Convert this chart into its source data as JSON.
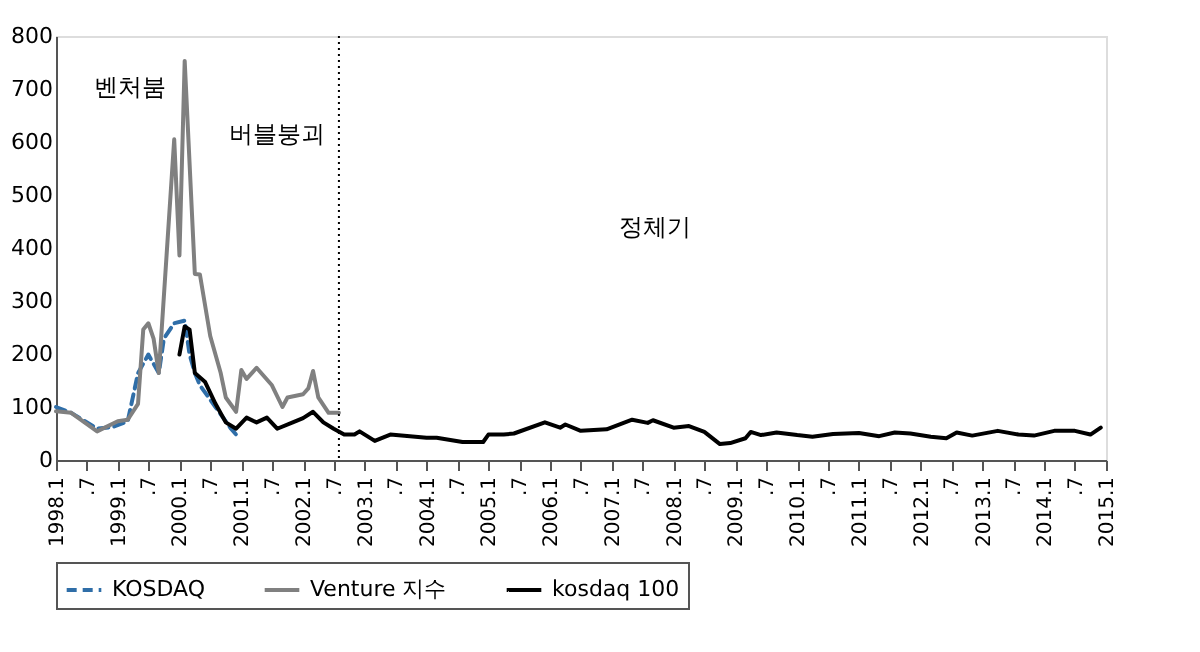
{
  "chart_data": {
    "type": "line",
    "xlim": [
      "1998-01",
      "2015-01"
    ],
    "ylim": [
      0,
      800
    ],
    "yticks": [
      0,
      100,
      200,
      300,
      400,
      500,
      600,
      700,
      800
    ],
    "xticks": [
      {
        "value": "1998-01",
        "label": "1998.1"
      },
      {
        "value": "1998-07",
        "label": ".7"
      },
      {
        "value": "1999-01",
        "label": "1999.1"
      },
      {
        "value": "1999-07",
        "label": ".7"
      },
      {
        "value": "2000-01",
        "label": "2000.1"
      },
      {
        "value": "2000-07",
        "label": ".7"
      },
      {
        "value": "2001-01",
        "label": "2001.1"
      },
      {
        "value": "2001-07",
        "label": ".7"
      },
      {
        "value": "2002-01",
        "label": "2002.1"
      },
      {
        "value": "2002-07",
        "label": ".7"
      },
      {
        "value": "2003-01",
        "label": "2003.1"
      },
      {
        "value": "2003-07",
        "label": ".7"
      },
      {
        "value": "2004-01",
        "label": "2004.1"
      },
      {
        "value": "2004-07",
        "label": ".7"
      },
      {
        "value": "2005-01",
        "label": "2005.1"
      },
      {
        "value": "2005-07",
        "label": ".7"
      },
      {
        "value": "2006-01",
        "label": "2006.1"
      },
      {
        "value": "2006-07",
        "label": ".7"
      },
      {
        "value": "2007-01",
        "label": "2007.1"
      },
      {
        "value": "2007-07",
        "label": ".7"
      },
      {
        "value": "2008-01",
        "label": "2008.1"
      },
      {
        "value": "2008-07",
        "label": ".7"
      },
      {
        "value": "2009-01",
        "label": "2009.1"
      },
      {
        "value": "2009-07",
        "label": ".7"
      },
      {
        "value": "2010-01",
        "label": "2010.1"
      },
      {
        "value": "2010-07",
        "label": ".7"
      },
      {
        "value": "2011-01",
        "label": "2011.1"
      },
      {
        "value": "2011-07",
        "label": ".7"
      },
      {
        "value": "2012-01",
        "label": "2012.1"
      },
      {
        "value": "2012-07",
        "label": ".7"
      },
      {
        "value": "2013-01",
        "label": "2013.1"
      },
      {
        "value": "2013-07",
        "label": ".7"
      },
      {
        "value": "2014-01",
        "label": "2014.1"
      },
      {
        "value": "2014-07",
        "label": ".7"
      },
      {
        "value": "2015-01",
        "label": "2015.1"
      }
    ],
    "grid": false,
    "legend": "bottom",
    "marker": "none",
    "series": [
      {
        "name": "KOSDAQ",
        "color": "#2f6ea8",
        "line_style": "dashed",
        "x": [
          "1998-01",
          "1998-04",
          "1998-09",
          "1998-12",
          "1999-03",
          "1999-05",
          "1999-07",
          "1999-09",
          "1999-10",
          "1999-12",
          "2000-02",
          "2000-03",
          "2000-04",
          "2000-05",
          "2000-08",
          "2000-11",
          "2000-12"
        ],
        "values": [
          100,
          89,
          59,
          62,
          73,
          164,
          199,
          164,
          229,
          258,
          263,
          199,
          164,
          141,
          100,
          59,
          48
        ]
      },
      {
        "name": "Venture 지수",
        "color": "#808080",
        "line_style": "solid",
        "x": [
          "1998-01",
          "1998-04",
          "1998-09",
          "1999-01",
          "1999-03",
          "1999-05",
          "1999-06",
          "1999-07",
          "1999-08",
          "1999-09",
          "1999-12",
          "2000-01",
          "2000-02",
          "2000-04",
          "2000-05",
          "2000-07",
          "2000-09",
          "2000-10",
          "2000-12",
          "2001-01",
          "2001-02",
          "2001-04",
          "2001-07",
          "2001-09",
          "2001-10",
          "2002-01",
          "2002-02",
          "2002-03",
          "2002-04",
          "2002-06",
          "2002-08"
        ],
        "values": [
          92,
          89,
          54,
          73,
          76,
          106,
          246,
          258,
          229,
          164,
          605,
          386,
          753,
          351,
          350,
          234,
          164,
          118,
          91,
          170,
          153,
          174,
          141,
          100,
          118,
          124,
          135,
          168,
          118,
          89,
          89
        ]
      },
      {
        "name": "kosdaq 100",
        "color": "#000000",
        "line_style": "solid",
        "x": [
          "2000-01",
          "2000-02",
          "2000-03",
          "2000-04",
          "2000-06",
          "2000-08",
          "2000-10",
          "2000-12",
          "2001-02",
          "2001-04",
          "2001-06",
          "2001-08",
          "2001-11",
          "2002-01",
          "2002-03",
          "2002-05",
          "2002-07",
          "2002-09",
          "2002-11",
          "2002-12",
          "2003-03",
          "2003-06",
          "2004-01",
          "2004-03",
          "2004-08",
          "2004-12",
          "2005-01",
          "2005-04",
          "2005-06",
          "2005-12",
          "2006-03",
          "2006-04",
          "2006-07",
          "2006-12",
          "2007-05",
          "2007-08",
          "2007-09",
          "2008-01",
          "2008-04",
          "2008-07",
          "2008-10",
          "2008-12",
          "2009-03",
          "2009-04",
          "2009-06",
          "2009-09",
          "2010-01",
          "2010-04",
          "2010-08",
          "2011-01",
          "2011-05",
          "2011-08",
          "2011-11",
          "2012-03",
          "2012-06",
          "2012-08",
          "2012-11",
          "2013-04",
          "2013-08",
          "2013-11",
          "2014-03",
          "2014-07",
          "2014-10",
          "2014-12"
        ],
        "values": [
          199,
          252,
          246,
          164,
          147,
          106,
          71,
          59,
          80,
          71,
          80,
          59,
          71,
          79,
          91,
          71,
          59,
          48,
          48,
          54,
          36,
          48,
          42,
          42,
          34,
          34,
          48,
          48,
          50,
          71,
          61,
          67,
          55,
          58,
          76,
          70,
          75,
          61,
          64,
          53,
          30,
          32,
          41,
          53,
          47,
          52,
          47,
          44,
          49,
          51,
          45,
          52,
          50,
          44,
          41,
          52,
          46,
          55,
          48,
          46,
          55,
          55,
          48,
          61
        ]
      }
    ],
    "ref_lines": [
      {
        "axis": "x",
        "value": "2002-08",
        "color": "#000000",
        "line_style": "dotted"
      }
    ],
    "annotations": [
      "벤처붐",
      "버블붕괴",
      "정체기"
    ]
  }
}
